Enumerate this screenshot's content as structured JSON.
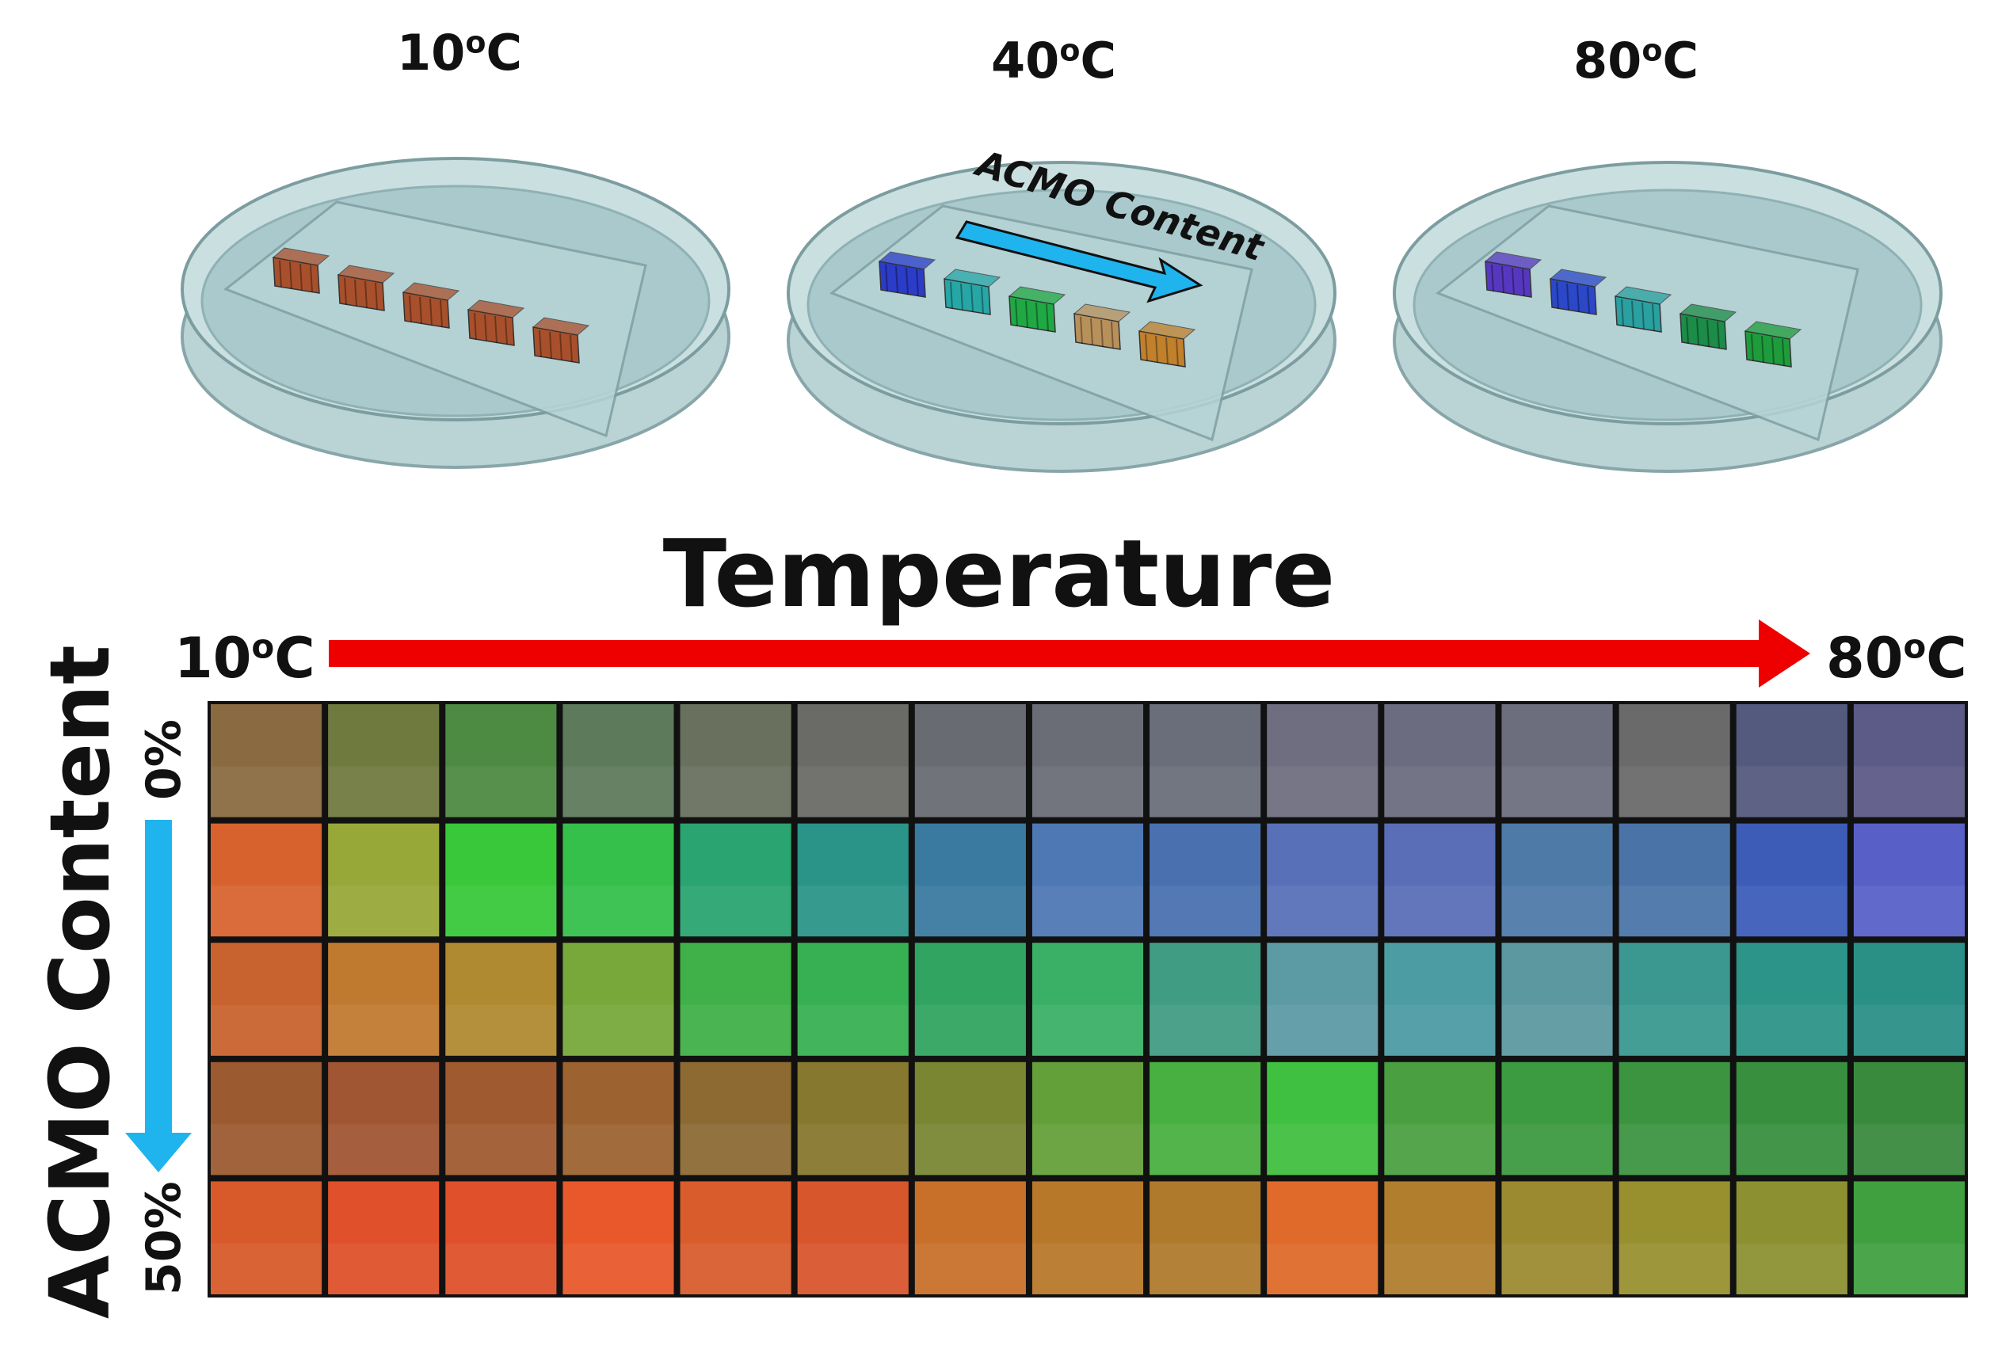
{
  "dishes": [
    {
      "label": "10",
      "unit": "°C",
      "sample_colors": [
        "#a8502c",
        "#a8502c",
        "#a8502c",
        "#a8502c",
        "#a8502c"
      ]
    },
    {
      "label": "40",
      "unit": "°C",
      "sample_colors": [
        "#2b3cc8",
        "#27a6a6",
        "#20a845",
        "#b8905a",
        "#c0802c"
      ]
    },
    {
      "label": "80",
      "unit": "°C",
      "sample_colors": [
        "#5638c0",
        "#2b48c8",
        "#2aa0a0",
        "#1c8c48",
        "#1e9c3c"
      ]
    }
  ],
  "dish_arrow_label": "ACMO Content",
  "temperature_title": "Temperature",
  "temp_start": "10",
  "temp_end": "80",
  "temp_unit": "°C",
  "acmo_axis_label": "ACMO Content",
  "acmo_start": "0%",
  "acmo_end": "50%",
  "colors": {
    "temperature_arrow": "#ee0000",
    "acmo_arrow": "#1fb4ee",
    "dish_fill": "#b3cfd1",
    "dish_edge": "#7c9da0"
  },
  "grid": {
    "rows": 5,
    "cols": 15,
    "row_colors": [
      [
        "#8a6a40",
        "#6f7a3e",
        "#4d8a42",
        "#5d7a5a",
        "#6a705e",
        "#6a6a66",
        "#686c72",
        "#6a6c76",
        "#6a6e7a",
        "#6e6e80",
        "#6c6c80",
        "#6c6e7e",
        "#6a6a6a",
        "#545a7e",
        "#5c5a86"
      ],
      [
        "#d8622e",
        "#98a838",
        "#38c83a",
        "#34c04a",
        "#2aa470",
        "#2a9488",
        "#3a7aa0",
        "#4e78b4",
        "#4a70b0",
        "#5870b8",
        "#5a6eb8",
        "#4e7aa8",
        "#4a74a8",
        "#3c5cb8",
        "#5860c8"
      ],
      [
        "#c8622e",
        "#c07a30",
        "#b08a30",
        "#78a83a",
        "#40b048",
        "#36b052",
        "#30a460",
        "#3ab066",
        "#409c82",
        "#5c9aa4",
        "#4c9ca4",
        "#5c98a0",
        "#3a9890",
        "#2c9488",
        "#2a9086"
      ],
      [
        "#9c5a30",
        "#a05632",
        "#a05a30",
        "#9c6230",
        "#8c6a32",
        "#86782e",
        "#7a8632",
        "#64a03a",
        "#48b040",
        "#40c040",
        "#4aa040",
        "#3c9a40",
        "#3c9440",
        "#38903e",
        "#3a8a3e"
      ],
      [
        "#d85a2a",
        "#e0502a",
        "#e0502a",
        "#e8582a",
        "#d85c2c",
        "#d8562c",
        "#c8702a",
        "#b8782a",
        "#b07a2c",
        "#e06a2a",
        "#b07e2c",
        "#9c8a30",
        "#98902e",
        "#8c9030",
        "#40a040"
      ]
    ]
  }
}
